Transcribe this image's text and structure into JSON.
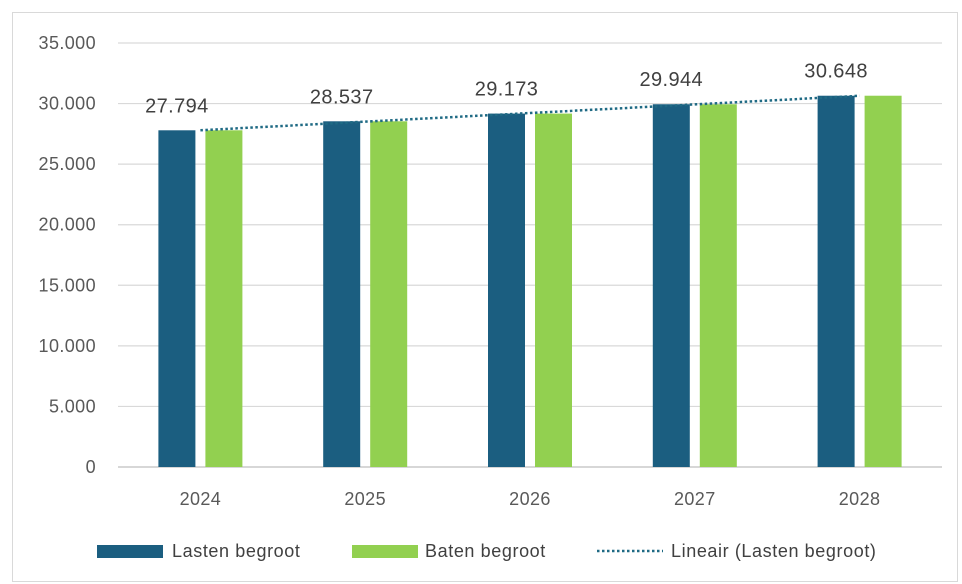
{
  "chart_data": {
    "type": "bar",
    "categories": [
      "2024",
      "2025",
      "2026",
      "2027",
      "2028"
    ],
    "series": [
      {
        "name": "Lasten begroot",
        "values": [
          27794,
          28537,
          29173,
          29944,
          30648
        ],
        "data_labels": [
          "27.794",
          "28.537",
          "29.173",
          "29.944",
          "30.648"
        ],
        "color": "#1B5E80"
      },
      {
        "name": "Baten begroot",
        "values": [
          27794,
          28537,
          29173,
          29944,
          30648
        ],
        "color": "#92D050"
      }
    ],
    "trendline": {
      "name": "Lineair (Lasten begroot)",
      "type": "linear",
      "series_index": 0,
      "style": "dotted",
      "color": "#1F6A84"
    },
    "ylim": [
      0,
      35000
    ],
    "y_ticks": [
      0,
      5000,
      10000,
      15000,
      20000,
      25000,
      30000,
      35000
    ],
    "y_tick_labels": [
      "0",
      "5.000",
      "10.000",
      "15.000",
      "20.000",
      "25.000",
      "30.000",
      "35.000"
    ],
    "grid": true,
    "legend_position": "bottom"
  }
}
